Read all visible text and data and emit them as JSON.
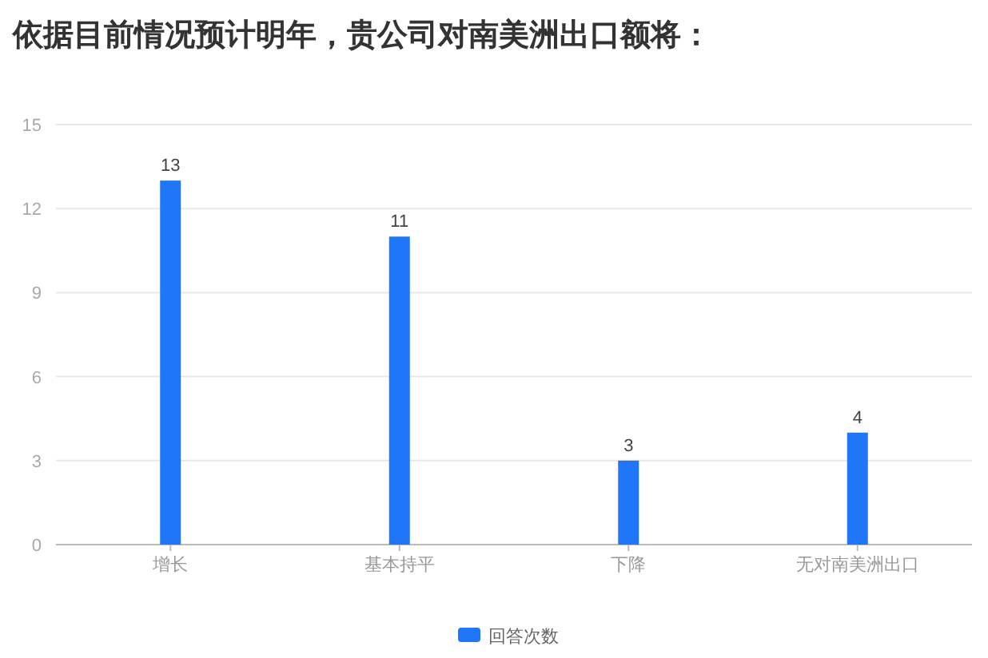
{
  "chart_data": {
    "type": "bar",
    "title": "依据目前情况预计明年，贵公司对南美洲出口额将：",
    "categories": [
      "增长",
      "基本持平",
      "下降",
      "无对南美洲出口"
    ],
    "series": [
      {
        "name": "回答次数",
        "color": "#1f77f7",
        "values": [
          13,
          11,
          3,
          4
        ]
      }
    ],
    "ylim": [
      0,
      15
    ],
    "yticks": [
      0,
      3,
      6,
      9,
      12,
      15
    ],
    "grid": "y",
    "legend": "bottom",
    "data_labels": true
  }
}
